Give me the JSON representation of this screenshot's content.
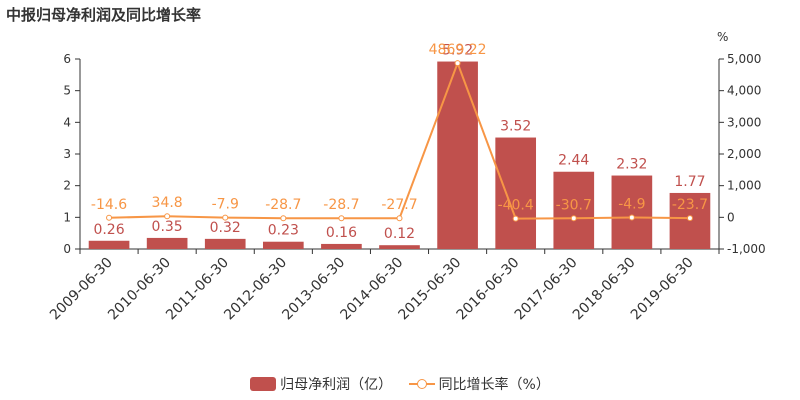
{
  "title": "中报归母净利润及同比增长率",
  "chart_data": {
    "type": "bar",
    "categories": [
      "2009-06-30",
      "2010-06-30",
      "2011-06-30",
      "2012-06-30",
      "2013-06-30",
      "2014-06-30",
      "2015-06-30",
      "2016-06-30",
      "2017-06-30",
      "2018-06-30",
      "2019-06-30"
    ],
    "series": [
      {
        "name": "归母净利润（亿）",
        "type": "bar",
        "axis": "left",
        "values": [
          0.26,
          0.35,
          0.32,
          0.23,
          0.16,
          0.12,
          5.92,
          3.52,
          2.44,
          2.32,
          1.77
        ],
        "labels": [
          "0.26",
          "0.35",
          "0.32",
          "0.23",
          "0.16",
          "0.12",
          "5.92",
          "3.52",
          "2.44",
          "2.32",
          "1.77"
        ]
      },
      {
        "name": "同比增长率（%）",
        "type": "line",
        "axis": "right",
        "values": [
          -14.6,
          34.8,
          -7.9,
          -28.7,
          -28.7,
          -27.7,
          4869.22,
          -40.4,
          -30.7,
          -4.9,
          -23.7
        ],
        "labels": [
          "-14.6",
          "34.8",
          "-7.9",
          "-28.7",
          "-28.7",
          "-27.7",
          "4869.22",
          "-40.4",
          "-30.7",
          "-4.9",
          "-23.7"
        ]
      }
    ],
    "y_left": {
      "min": 0,
      "max": 6,
      "ticks": [
        "0",
        "1",
        "2",
        "3",
        "4",
        "5",
        "6"
      ]
    },
    "y_right": {
      "min": -1000,
      "max": 5000,
      "unit": "%",
      "ticks": [
        "-1,000",
        "0",
        "1,000",
        "2,000",
        "3,000",
        "4,000",
        "5,000"
      ]
    },
    "colors": {
      "bar": "#c0504d",
      "line": "#f79646"
    },
    "grid": false,
    "legend_position": "bottom-center"
  },
  "legend": [
    {
      "label": "归母净利润（亿）",
      "kind": "bar"
    },
    {
      "label": "同比增长率（%）",
      "kind": "line"
    }
  ]
}
